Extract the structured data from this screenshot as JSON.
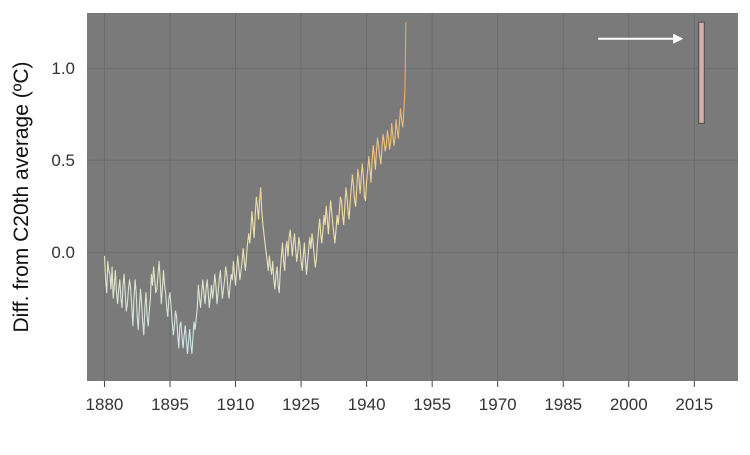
{
  "chart_data": {
    "type": "line",
    "title": "",
    "xlabel": "",
    "ylabel": "Diff. from C20th average (ºC)",
    "xlim": [
      1876,
      2025
    ],
    "ylim": [
      -0.7,
      1.3
    ],
    "x_ticks": [
      1880,
      1895,
      1910,
      1925,
      1940,
      1955,
      1970,
      1985,
      2000,
      2015
    ],
    "x_tick_labels": [
      "1880",
      "1895",
      "1910",
      "1925",
      "1940",
      "1955",
      "1970",
      "1985",
      "2000",
      "2015"
    ],
    "y_ticks": [
      0.0,
      0.5,
      1.0
    ],
    "y_tick_labels": [
      "0.0",
      "0.5",
      "1.0"
    ],
    "grid": true,
    "background_color": "#7a7a7a",
    "grid_color": "#6c6c6c",
    "color_cold": "#cfe4ee",
    "color_mid": "#f0e2a0",
    "color_warm": "#f0a860",
    "annotations": [
      {
        "type": "arrow",
        "from": {
          "x": 1993,
          "y": 1.16
        },
        "to": {
          "x": 2012,
          "y": 1.16
        },
        "color": "#ffffff"
      },
      {
        "type": "highlight_box",
        "x_range": [
          2016,
          2017.3
        ],
        "y_range": [
          0.7,
          1.25
        ],
        "fill": "#d4b0a8",
        "stroke": "#555555"
      }
    ],
    "series": [
      {
        "x_start": 1880,
        "x_step": 0.25,
        "values": [
          -0.02,
          -0.15,
          -0.22,
          -0.05,
          -0.1,
          -0.12,
          -0.2,
          -0.08,
          -0.25,
          -0.18,
          -0.1,
          -0.22,
          -0.28,
          -0.2,
          -0.15,
          -0.25,
          -0.3,
          -0.18,
          -0.12,
          -0.22,
          -0.32,
          -0.28,
          -0.2,
          -0.15,
          -0.2,
          -0.3,
          -0.4,
          -0.25,
          -0.15,
          -0.22,
          -0.35,
          -0.42,
          -0.3,
          -0.2,
          -0.28,
          -0.38,
          -0.45,
          -0.3,
          -0.22,
          -0.35,
          -0.4,
          -0.32,
          -0.25,
          -0.12,
          -0.18,
          -0.08,
          -0.15,
          -0.22,
          -0.2,
          -0.12,
          -0.05,
          -0.15,
          -0.28,
          -0.2,
          -0.1,
          -0.18,
          -0.22,
          -0.3,
          -0.35,
          -0.25,
          -0.22,
          -0.3,
          -0.38,
          -0.45,
          -0.4,
          -0.32,
          -0.35,
          -0.45,
          -0.52,
          -0.4,
          -0.38,
          -0.46,
          -0.52,
          -0.45,
          -0.4,
          -0.48,
          -0.55,
          -0.48,
          -0.42,
          -0.5,
          -0.55,
          -0.46,
          -0.38,
          -0.42,
          -0.36,
          -0.3,
          -0.18,
          -0.25,
          -0.3,
          -0.22,
          -0.15,
          -0.22,
          -0.28,
          -0.2,
          -0.15,
          -0.22,
          -0.3,
          -0.24,
          -0.18,
          -0.25,
          -0.2,
          -0.12,
          -0.18,
          -0.28,
          -0.22,
          -0.15,
          -0.1,
          -0.18,
          -0.25,
          -0.2,
          -0.15,
          -0.08,
          -0.12,
          -0.2,
          -0.25,
          -0.18,
          -0.12,
          -0.15,
          -0.05,
          -0.12,
          -0.18,
          -0.1,
          -0.02,
          -0.08,
          -0.15,
          -0.1,
          -0.05,
          0.02,
          -0.05,
          -0.1,
          -0.02,
          0.05,
          0.1,
          0.05,
          0.12,
          0.22,
          0.15,
          0.08,
          0.2,
          0.3,
          0.25,
          0.18,
          0.28,
          0.35,
          0.22,
          0.15,
          0.1,
          0.05,
          0.0,
          -0.05,
          -0.1,
          -0.02,
          -0.08,
          -0.12,
          -0.05,
          -0.15,
          -0.2,
          -0.12,
          -0.08,
          -0.18,
          -0.22,
          -0.1,
          -0.02,
          0.05,
          -0.05,
          -0.1,
          0.02,
          0.06,
          -0.02,
          0.08,
          0.12,
          0.05,
          -0.02,
          0.05,
          0.1,
          0.02,
          -0.05,
          0.0,
          0.08,
          0.04,
          -0.05,
          -0.1,
          -0.02,
          0.05,
          -0.05,
          -0.12,
          -0.05,
          0.02,
          0.08,
          0.02,
          0.1,
          0.05,
          -0.02,
          -0.08,
          -0.04,
          0.05,
          0.12,
          0.18,
          0.1,
          0.05,
          0.12,
          0.2,
          0.15,
          0.25,
          0.18,
          0.1,
          0.2,
          0.28,
          0.22,
          0.15,
          0.1,
          0.05,
          0.12,
          0.2,
          0.15,
          0.22,
          0.3,
          0.28,
          0.2,
          0.15,
          0.25,
          0.35,
          0.3,
          0.22,
          0.18,
          0.28,
          0.35,
          0.42,
          0.36,
          0.28,
          0.25,
          0.35,
          0.45,
          0.4,
          0.32,
          0.4,
          0.48,
          0.42,
          0.3,
          0.28,
          0.38,
          0.45,
          0.52,
          0.45,
          0.38,
          0.5,
          0.58,
          0.52,
          0.45,
          0.55,
          0.62,
          0.58,
          0.52,
          0.48,
          0.56,
          0.64,
          0.6,
          0.55,
          0.58,
          0.66,
          0.62,
          0.56,
          0.6,
          0.7,
          0.64,
          0.58,
          0.62,
          0.72,
          0.66,
          0.62,
          0.7,
          0.78,
          0.72,
          0.68,
          0.76,
          0.88,
          1.25
        ]
      }
    ]
  }
}
